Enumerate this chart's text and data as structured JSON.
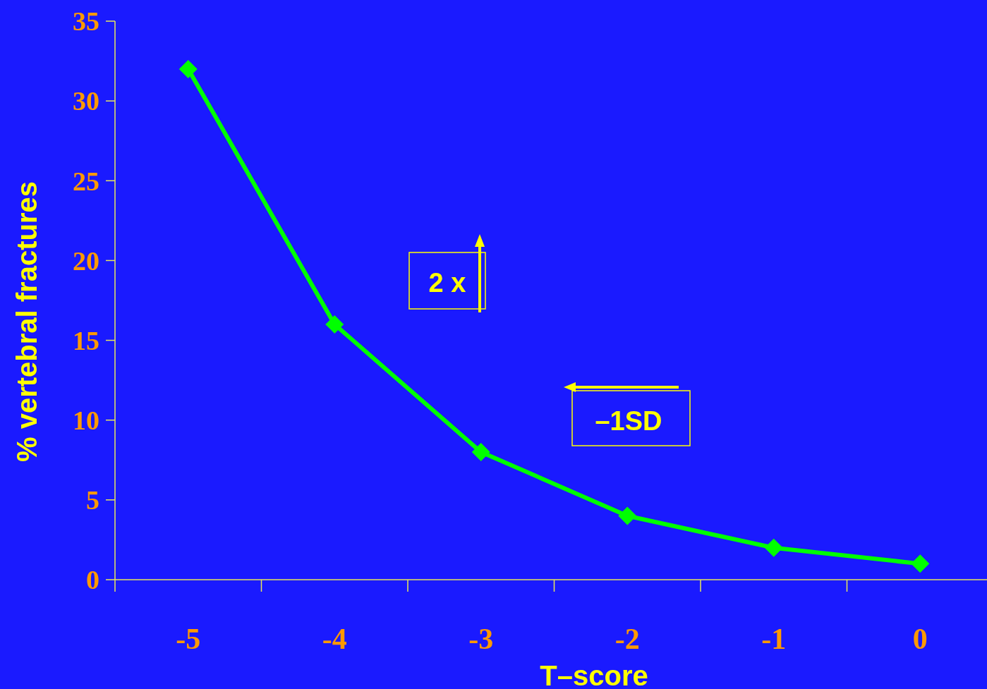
{
  "chart_data": {
    "type": "line",
    "categories": [
      "-5",
      "-4",
      "-3",
      "-2",
      "-1",
      "0"
    ],
    "values": [
      32,
      16,
      8,
      4,
      2,
      1
    ],
    "color": "#00ff00",
    "marker": "diamond",
    "line_style": "solid",
    "xlabel": "T–score",
    "ylabel": "% vertebral fractures",
    "ylim": [
      0,
      35
    ],
    "yticks": [
      0,
      5,
      10,
      15,
      20,
      25,
      30,
      35
    ],
    "annotations": [
      "2 x",
      "–1SD"
    ]
  }
}
